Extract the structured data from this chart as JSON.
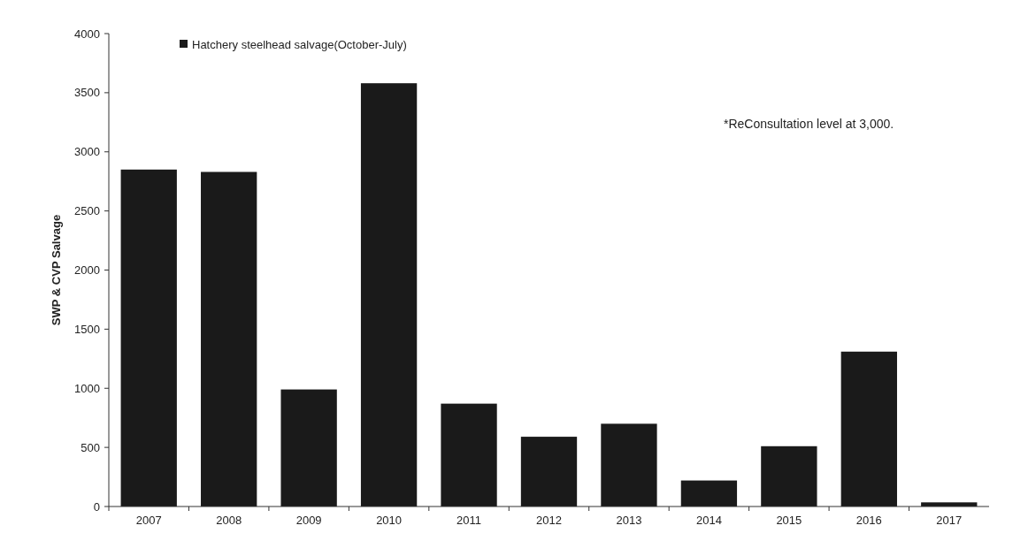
{
  "chart_data": {
    "type": "bar",
    "ylabel": "SWP & CVP Salvage",
    "categories": [
      "2007",
      "2008",
      "2009",
      "2010",
      "2011",
      "2012",
      "2013",
      "2014",
      "2015",
      "2016",
      "2017"
    ],
    "series": [
      {
        "name": "Hatchery steelhead salvage(October-July)",
        "color": "#1a1a1a",
        "values": [
          2850,
          2830,
          990,
          3580,
          870,
          590,
          700,
          220,
          510,
          1310,
          35
        ]
      }
    ],
    "ylim": [
      0,
      4000
    ],
    "yticks": [
      0,
      500,
      1000,
      1500,
      2000,
      2500,
      3000,
      3500,
      4000
    ],
    "grid": false,
    "legend": "top left",
    "annotations": [
      "*ReConsultation level  at 3,000."
    ]
  }
}
